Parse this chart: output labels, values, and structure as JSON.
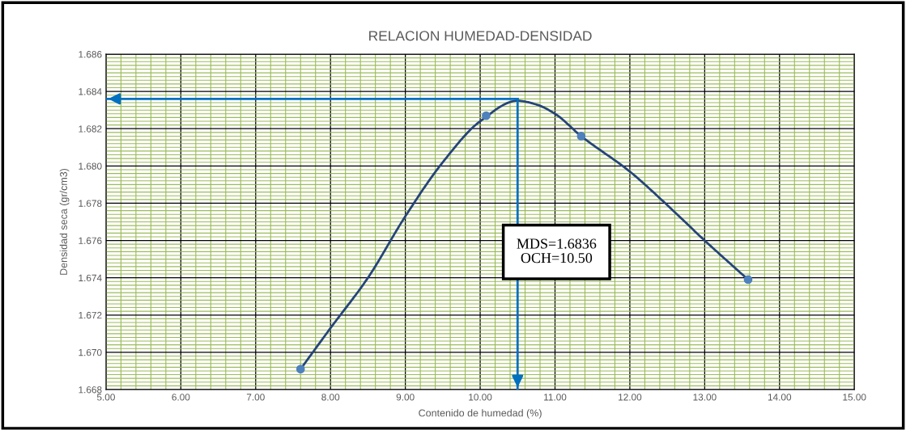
{
  "chart_data": {
    "type": "line",
    "title": "RELACION HUMEDAD-DENSIDAD",
    "xlabel": "Contenido de humedad (%)",
    "ylabel": "Densidad seca (gr/cm3)",
    "xlim": [
      5,
      15
    ],
    "xticks": [
      {
        "value": 5,
        "label": "5.00"
      },
      {
        "value": 5.2,
        "label": null
      },
      {
        "value": 5.4,
        "label": null
      },
      {
        "value": 5.6,
        "label": null
      },
      {
        "value": 5.8,
        "label": null
      },
      {
        "value": 6,
        "label": "6.00"
      },
      {
        "value": 6.2,
        "label": null
      },
      {
        "value": 6.4,
        "label": null
      },
      {
        "value": 6.6,
        "label": null
      },
      {
        "value": 6.8,
        "label": null
      },
      {
        "value": 7,
        "label": "7.00"
      },
      {
        "value": 7.2,
        "label": null
      },
      {
        "value": 7.4,
        "label": null
      },
      {
        "value": 7.6,
        "label": null
      },
      {
        "value": 7.8,
        "label": null
      },
      {
        "value": 8,
        "label": "8.00"
      },
      {
        "value": 8.2,
        "label": null
      },
      {
        "value": 8.4,
        "label": null
      },
      {
        "value": 8.6,
        "label": null
      },
      {
        "value": 8.8,
        "label": null
      },
      {
        "value": 9,
        "label": "9.00"
      },
      {
        "value": 9.2,
        "label": null
      },
      {
        "value": 9.4,
        "label": null
      },
      {
        "value": 9.6,
        "label": null
      },
      {
        "value": 9.8,
        "label": null
      },
      {
        "value": 10,
        "label": "10.00"
      },
      {
        "value": 10.2,
        "label": null
      },
      {
        "value": 10.4,
        "label": null
      },
      {
        "value": 10.6,
        "label": null
      },
      {
        "value": 10.8,
        "label": null
      },
      {
        "value": 11,
        "label": "11.00"
      },
      {
        "value": 11.2,
        "label": null
      },
      {
        "value": 11.4,
        "label": null
      },
      {
        "value": 11.6,
        "label": null
      },
      {
        "value": 11.8,
        "label": null
      },
      {
        "value": 12,
        "label": "12.00"
      },
      {
        "value": 12.2,
        "label": null
      },
      {
        "value": 12.4,
        "label": null
      },
      {
        "value": 12.6,
        "label": null
      },
      {
        "value": 12.8,
        "label": null
      },
      {
        "value": 13,
        "label": "13.00"
      },
      {
        "value": 13.2,
        "label": null
      },
      {
        "value": 13.4,
        "label": null
      },
      {
        "value": 13.6,
        "label": null
      },
      {
        "value": 13.8,
        "label": null
      },
      {
        "value": 14,
        "label": "14.00"
      },
      {
        "value": 14.2,
        "label": null
      },
      {
        "value": 14.4,
        "label": null
      },
      {
        "value": 14.6,
        "label": null
      },
      {
        "value": 14.8,
        "label": null
      },
      {
        "value": 15,
        "label": "15.00"
      }
    ],
    "ylim": [
      1.668,
      1.686
    ],
    "yticks": [
      1.668,
      {
        "value": 1.6682,
        "label": null
      },
      {
        "value": 1.6684,
        "label": null
      },
      {
        "value": 1.6686,
        "label": null
      },
      {
        "value": 1.6688,
        "label": null
      },
      {
        "value": 1.669,
        "label": null
      },
      {
        "value": 1.6692,
        "label": null
      },
      {
        "value": 1.6694,
        "label": null
      },
      {
        "value": 1.6696,
        "label": null
      },
      {
        "value": 1.6698,
        "label": null
      },
      {
        "value": 1.67,
        "label": "1.670"
      },
      {
        "value": 1.6702,
        "label": null
      },
      {
        "value": 1.6704,
        "label": null
      },
      {
        "value": 1.6706,
        "label": null
      },
      {
        "value": 1.6708,
        "label": null
      },
      {
        "value": 1.671,
        "label": null
      },
      {
        "value": 1.6712,
        "label": null
      },
      {
        "value": 1.6714,
        "label": null
      },
      {
        "value": 1.6716,
        "label": null
      },
      {
        "value": 1.6718,
        "label": null
      },
      1.672,
      {
        "value": 1.6722,
        "label": null
      },
      {
        "value": 1.6724,
        "label": null
      },
      {
        "value": 1.6726,
        "label": null
      },
      {
        "value": 1.6728,
        "label": null
      },
      {
        "value": 1.673,
        "label": null
      },
      {
        "value": 1.6732,
        "label": null
      },
      {
        "value": 1.6734,
        "label": null
      },
      {
        "value": 1.6736,
        "label": null
      },
      {
        "value": 1.6738,
        "label": null
      },
      1.674,
      {
        "value": 1.6742,
        "label": null
      },
      {
        "value": 1.6744,
        "label": null
      },
      {
        "value": 1.6746,
        "label": null
      },
      {
        "value": 1.6748,
        "label": null
      },
      {
        "value": 1.675,
        "label": null
      },
      {
        "value": 1.6752,
        "label": null
      },
      {
        "value": 1.6754,
        "label": null
      },
      {
        "value": 1.6756,
        "label": null
      },
      {
        "value": 1.6758,
        "label": null
      },
      1.676,
      {
        "value": 1.6762,
        "label": null
      },
      {
        "value": 1.6764,
        "label": null
      },
      {
        "value": 1.6766,
        "label": null
      },
      {
        "value": 1.6768,
        "label": null
      },
      {
        "value": 1.677,
        "label": null
      },
      {
        "value": 1.6772,
        "label": null
      },
      {
        "value": 1.6774,
        "label": null
      },
      {
        "value": 1.6776,
        "label": null
      },
      {
        "value": 1.6778,
        "label": null
      },
      1.678,
      {
        "value": 1.6782,
        "label": null
      },
      {
        "value": 1.6784,
        "label": null
      },
      {
        "value": 1.6786,
        "label": null
      },
      {
        "value": 1.6788,
        "label": null
      },
      {
        "value": 1.679,
        "label": null
      },
      {
        "value": 1.6792,
        "label": null
      },
      {
        "value": 1.6794,
        "label": null
      },
      {
        "value": 1.6796,
        "label": null
      },
      {
        "value": 1.6798,
        "label": null
      },
      {
        "value": 1.68,
        "label": "1.680"
      },
      {
        "value": 1.6802,
        "label": null
      },
      {
        "value": 1.6804,
        "label": null
      },
      {
        "value": 1.6806,
        "label": null
      },
      {
        "value": 1.6808,
        "label": null
      },
      {
        "value": 1.681,
        "label": null
      },
      {
        "value": 1.6812,
        "label": null
      },
      {
        "value": 1.6814,
        "label": null
      },
      {
        "value": 1.6816,
        "label": null
      },
      {
        "value": 1.6818,
        "label": null
      },
      1.682,
      {
        "value": 1.6822,
        "label": null
      },
      {
        "value": 1.6824,
        "label": null
      },
      {
        "value": 1.6826,
        "label": null
      },
      {
        "value": 1.6828,
        "label": null
      },
      {
        "value": 1.683,
        "label": null
      },
      {
        "value": 1.6832,
        "label": null
      },
      {
        "value": 1.6834,
        "label": null
      },
      {
        "value": 1.6836,
        "label": null
      },
      {
        "value": 1.6838,
        "label": null
      },
      1.684,
      {
        "value": 1.6842,
        "label": null
      },
      {
        "value": 1.6844,
        "label": null
      },
      {
        "value": 1.6846,
        "label": null
      },
      {
        "value": 1.6848,
        "label": null
      },
      {
        "value": 1.685,
        "label": null
      },
      {
        "value": 1.6852,
        "label": null
      },
      {
        "value": 1.6854,
        "label": null
      },
      {
        "value": 1.6856,
        "label": null
      },
      {
        "value": 1.6858,
        "label": null
      },
      1.686
    ],
    "grid": true,
    "series": [
      {
        "color": "#264478",
        "marker": "none",
        "x": [
          7.6,
          8.0,
          8.5,
          9.0,
          9.5,
          10.0,
          10.5,
          10.75,
          11.0,
          11.35,
          12.0,
          12.5,
          13.0,
          13.58
        ],
        "values": [
          1.6691,
          1.6713,
          1.674,
          1.6773,
          1.6802,
          1.6824,
          1.6835,
          1.6833,
          1.6828,
          1.6816,
          1.6797,
          1.6779,
          1.676,
          1.6739
        ]
      },
      {
        "type": "scatter",
        "color": "#4f81bd",
        "marker": "circle",
        "x": [
          7.6,
          10.08,
          11.35,
          13.58
        ],
        "values": [
          1.6691,
          1.6827,
          1.6816,
          1.6739
        ]
      }
    ],
    "ref_lines": [
      {
        "axis": "y",
        "value": 1.6836,
        "color": "#0070c0"
      },
      {
        "axis": "x",
        "value": 10.5,
        "color": "#0070c0"
      }
    ],
    "annotations": [
      "MDS=1.6836\nOCH=10.50"
    ]
  }
}
